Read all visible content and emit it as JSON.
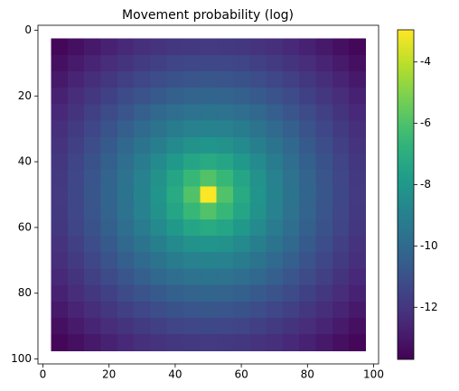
{
  "chart_data": {
    "type": "heatmap",
    "title": "Movement probability (log)",
    "colormap": "viridis",
    "x": [
      5,
      10,
      15,
      20,
      25,
      30,
      35,
      40,
      45,
      50,
      55,
      60,
      65,
      70,
      75,
      80,
      85,
      90,
      95
    ],
    "y": [
      5,
      10,
      15,
      20,
      25,
      30,
      35,
      40,
      45,
      50,
      55,
      60,
      65,
      70,
      75,
      80,
      85,
      90,
      95
    ],
    "values": [
      [
        -13.53,
        -13.24,
        -12.96,
        -12.7,
        -12.47,
        -12.26,
        -12.09,
        -11.96,
        -11.88,
        -11.85,
        -11.88,
        -11.96,
        -12.09,
        -12.26,
        -12.47,
        -12.7,
        -12.96,
        -13.24,
        -13.53
      ],
      [
        -13.24,
        -12.92,
        -12.62,
        -12.33,
        -12.06,
        -11.82,
        -11.62,
        -11.47,
        -11.38,
        -11.34,
        -11.38,
        -11.47,
        -11.62,
        -11.82,
        -12.06,
        -12.33,
        -12.62,
        -12.92,
        -13.24
      ],
      [
        -12.96,
        -12.62,
        -12.28,
        -11.96,
        -11.65,
        -11.38,
        -11.14,
        -10.96,
        -10.84,
        -10.81,
        -10.84,
        -10.96,
        -11.14,
        -11.38,
        -11.65,
        -11.96,
        -12.28,
        -12.62,
        -12.96
      ],
      [
        -12.7,
        -12.33,
        -11.96,
        -11.59,
        -11.25,
        -10.92,
        -10.64,
        -10.42,
        -10.27,
        -10.22,
        -10.27,
        -10.42,
        -10.64,
        -10.92,
        -11.25,
        -11.59,
        -11.96,
        -12.33,
        -12.7
      ],
      [
        -12.47,
        -12.06,
        -11.65,
        -11.25,
        -10.84,
        -10.46,
        -10.12,
        -9.85,
        -9.66,
        -9.6,
        -9.66,
        -9.85,
        -10.12,
        -10.46,
        -10.84,
        -11.25,
        -11.65,
        -12.06,
        -12.47
      ],
      [
        -12.26,
        -11.82,
        -11.38,
        -10.92,
        -10.46,
        -10.02,
        -9.6,
        -9.24,
        -8.99,
        -8.9,
        -8.99,
        -9.24,
        -9.6,
        -10.02,
        -10.46,
        -10.92,
        -11.38,
        -11.82,
        -12.26
      ],
      [
        -12.09,
        -11.62,
        -11.14,
        -10.64,
        -10.12,
        -9.6,
        -9.08,
        -8.6,
        -8.25,
        -8.11,
        -8.25,
        -8.6,
        -9.08,
        -9.6,
        -10.12,
        -10.64,
        -11.14,
        -11.62,
        -12.09
      ],
      [
        -11.96,
        -11.47,
        -10.96,
        -10.42,
        -9.85,
        -9.24,
        -8.6,
        -7.96,
        -7.41,
        -7.17,
        -7.41,
        -7.96,
        -8.6,
        -9.24,
        -9.85,
        -10.42,
        -10.96,
        -11.47,
        -11.96
      ],
      [
        -11.88,
        -11.38,
        -10.84,
        -10.27,
        -9.66,
        -8.99,
        -8.25,
        -7.41,
        -6.51,
        -5.95,
        -6.51,
        -7.41,
        -8.25,
        -8.99,
        -9.66,
        -10.27,
        -10.84,
        -11.38,
        -11.88
      ],
      [
        -11.85,
        -11.34,
        -10.81,
        -10.22,
        -9.6,
        -8.9,
        -8.11,
        -7.17,
        -5.95,
        -3,
        -5.95,
        -7.17,
        -8.11,
        -8.9,
        -9.6,
        -10.22,
        -10.81,
        -11.34,
        -11.85
      ],
      [
        -11.88,
        -11.38,
        -10.84,
        -10.27,
        -9.66,
        -8.99,
        -8.25,
        -7.41,
        -6.51,
        -5.95,
        -6.51,
        -7.41,
        -8.25,
        -8.99,
        -9.66,
        -10.27,
        -10.84,
        -11.38,
        -11.88
      ],
      [
        -11.96,
        -11.47,
        -10.96,
        -10.42,
        -9.85,
        -9.24,
        -8.6,
        -7.96,
        -7.41,
        -7.17,
        -7.41,
        -7.96,
        -8.6,
        -9.24,
        -9.85,
        -10.42,
        -10.96,
        -11.47,
        -11.96
      ],
      [
        -12.09,
        -11.62,
        -11.14,
        -10.64,
        -10.12,
        -9.6,
        -9.08,
        -8.6,
        -8.25,
        -8.11,
        -8.25,
        -8.6,
        -9.08,
        -9.6,
        -10.12,
        -10.64,
        -11.14,
        -11.62,
        -12.09
      ],
      [
        -12.26,
        -11.82,
        -11.38,
        -10.92,
        -10.46,
        -10.02,
        -9.6,
        -9.24,
        -8.99,
        -8.9,
        -8.99,
        -9.24,
        -9.6,
        -10.02,
        -10.46,
        -10.92,
        -11.38,
        -11.82,
        -12.26
      ],
      [
        -12.47,
        -12.06,
        -11.65,
        -11.25,
        -10.84,
        -10.46,
        -10.12,
        -9.85,
        -9.66,
        -9.6,
        -9.66,
        -9.85,
        -10.12,
        -10.46,
        -10.84,
        -11.25,
        -11.65,
        -12.06,
        -12.47
      ],
      [
        -12.7,
        -12.33,
        -11.96,
        -11.59,
        -11.25,
        -10.92,
        -10.64,
        -10.42,
        -10.27,
        -10.22,
        -10.27,
        -10.42,
        -10.64,
        -10.92,
        -11.25,
        -11.59,
        -11.96,
        -12.33,
        -12.7
      ],
      [
        -12.96,
        -12.62,
        -12.28,
        -11.96,
        -11.65,
        -11.38,
        -11.14,
        -10.96,
        -10.84,
        -10.81,
        -10.84,
        -10.96,
        -11.14,
        -11.38,
        -11.65,
        -11.96,
        -12.28,
        -12.62,
        -12.96
      ],
      [
        -13.24,
        -12.92,
        -12.62,
        -12.33,
        -12.06,
        -11.82,
        -11.62,
        -11.47,
        -11.38,
        -11.34,
        -11.38,
        -11.47,
        -11.62,
        -11.82,
        -12.06,
        -12.33,
        -12.62,
        -12.92,
        -13.24
      ],
      [
        -13.53,
        -13.24,
        -12.96,
        -12.7,
        -12.47,
        -12.26,
        -12.09,
        -11.96,
        -11.88,
        -11.85,
        -11.88,
        -11.96,
        -12.09,
        -12.26,
        -12.47,
        -12.7,
        -12.96,
        -13.24,
        -13.53
      ]
    ],
    "xlim": [
      -1.5,
      101.5
    ],
    "ylim": [
      101.5,
      -1.5
    ],
    "xticks": [
      0,
      20,
      40,
      60,
      80,
      100
    ],
    "yticks": [
      0,
      20,
      40,
      60,
      80,
      100
    ],
    "clim": [
      -13.7,
      -2.95
    ],
    "cticks": [
      -12,
      -10,
      -8,
      -6,
      -4
    ]
  }
}
